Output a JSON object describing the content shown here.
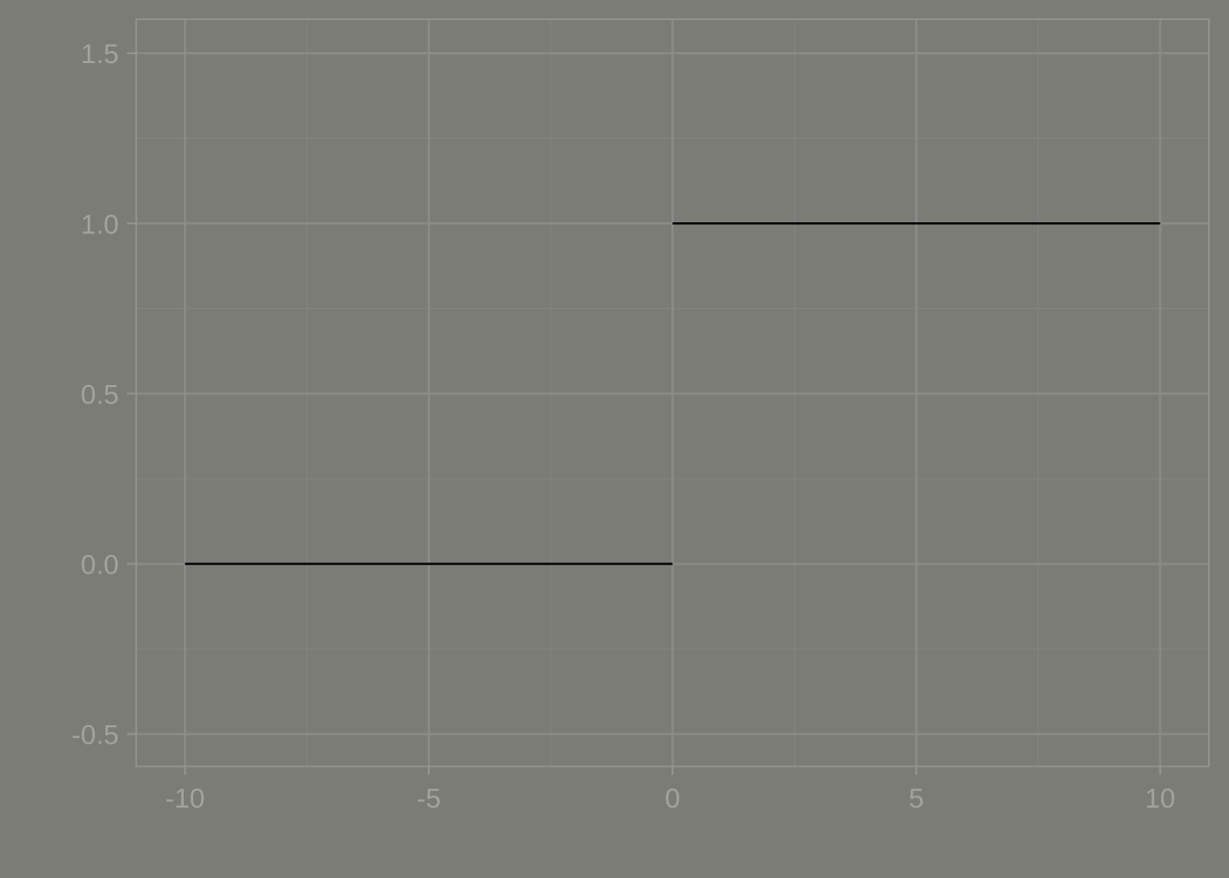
{
  "chart_data": {
    "type": "line",
    "title": "",
    "xlabel": "",
    "ylabel": "",
    "xlim": [
      -11,
      11
    ],
    "ylim": [
      -0.595,
      1.6
    ],
    "x_ticks": [
      -10,
      -5,
      0,
      5,
      10
    ],
    "x_tick_labels": [
      "-10",
      "-5",
      "0",
      "5",
      "10"
    ],
    "y_ticks": [
      -0.5,
      0.0,
      0.5,
      1.0,
      1.5
    ],
    "y_tick_labels": [
      "-0.5",
      "0.0",
      "0.5",
      "1.0",
      "1.5"
    ],
    "x_minor_ticks": [
      -7.5,
      -2.5,
      2.5,
      7.5
    ],
    "y_minor_ticks": [
      -0.25,
      0.25,
      0.75,
      1.25
    ],
    "grid": true,
    "legend": "none",
    "series": [
      {
        "segments": [
          {
            "x": [
              -10,
              0
            ],
            "y": [
              0,
              0
            ]
          },
          {
            "x": [
              0,
              10
            ],
            "y": [
              1,
              1
            ]
          }
        ],
        "color": "#000000"
      }
    ],
    "colors": {
      "background": "#7b7c76",
      "grid_major": "#8b8b87",
      "grid_minor": "#838480",
      "panel_border": "#959591",
      "tick_label": "#a2a39d"
    }
  }
}
